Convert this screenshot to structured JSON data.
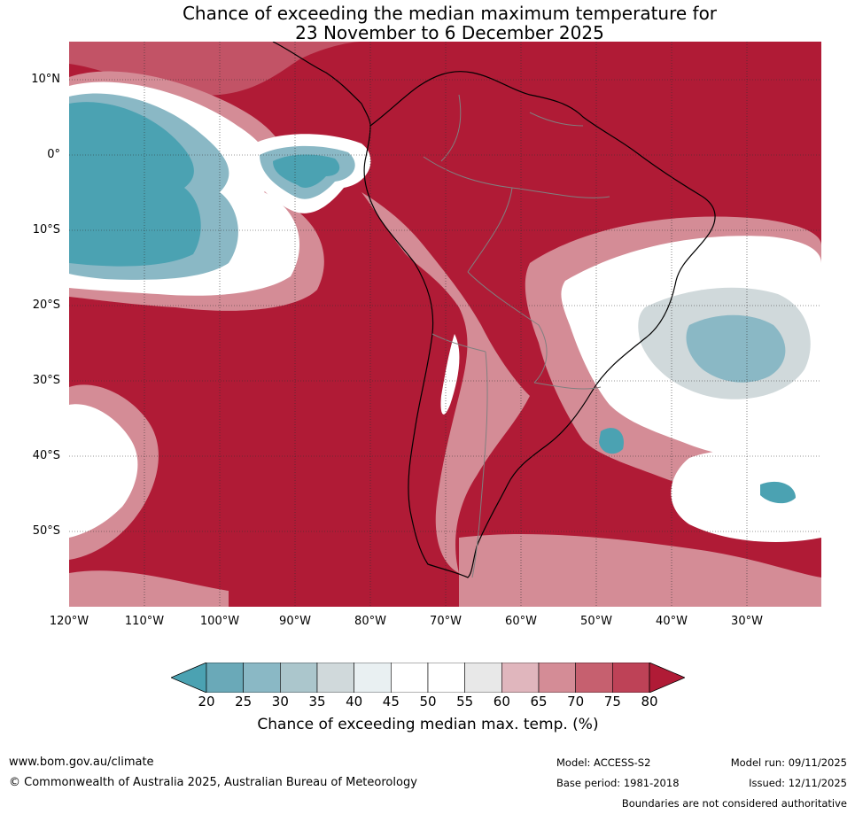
{
  "title": {
    "line1": "Chance of exceeding the median maximum temperature for",
    "line2": "23 November to 6 December 2025"
  },
  "map": {
    "region": "South America and surrounding oceans",
    "lat_labels": [
      "10°N",
      "0°",
      "10°S",
      "20°S",
      "30°S",
      "40°S",
      "50°S"
    ],
    "lon_labels": [
      "120°W",
      "110°W",
      "100°W",
      "90°W",
      "80°W",
      "70°W",
      "60°W",
      "50°W",
      "40°W",
      "30°W"
    ],
    "colors": {
      "high": "#b01b36",
      "land_outline": "#000000",
      "border": "#808080",
      "grid": "#303030"
    }
  },
  "colorbar": {
    "ticks": [
      "20",
      "25",
      "30",
      "35",
      "40",
      "45",
      "50",
      "55",
      "60",
      "65",
      "70",
      "75",
      "80"
    ],
    "colors": [
      "#4ba2b2",
      "#6aa9b8",
      "#8ab8c5",
      "#abc6cc",
      "#d0d9db",
      "#e9f0f2",
      "#ffffff",
      "#ffffff",
      "#e8e8e8",
      "#e0b6bd",
      "#d48c96",
      "#c6606f",
      "#be4257",
      "#b01b36"
    ],
    "label": "Chance of exceeding median max. temp. (%)"
  },
  "footer": {
    "website": "www.bom.gov.au/climate",
    "copyright": "© Commonwealth of Australia 2025, Australian Bureau of Meteorology",
    "model": "Model: ACCESS-S2",
    "base_period": "Base period: 1981-2018",
    "model_run": "Model run: 09/11/2025",
    "issued": "Issued: 12/11/2025",
    "disclaimer": "Boundaries are not considered authoritative"
  }
}
